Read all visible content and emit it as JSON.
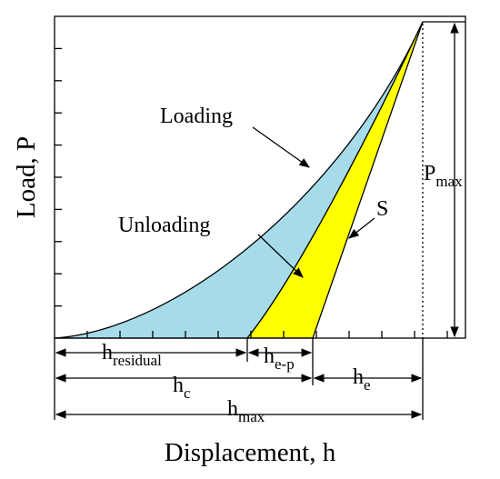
{
  "axes": {
    "y_label": "Load, P",
    "x_label": "Displacement, h"
  },
  "annotations": {
    "loading": "Loading",
    "unloading": "Unloading",
    "stiffness": "S"
  },
  "dimensions": {
    "p_max": {
      "main": "P",
      "sub": "max"
    },
    "h_residual": {
      "main": "h",
      "sub": "residual"
    },
    "h_e_p": {
      "main": "h",
      "sub": "e-p"
    },
    "h_c": {
      "main": "h",
      "sub": "c"
    },
    "h_e": {
      "main": "h",
      "sub": "e"
    },
    "h_max": {
      "main": "h",
      "sub": "max"
    }
  }
}
